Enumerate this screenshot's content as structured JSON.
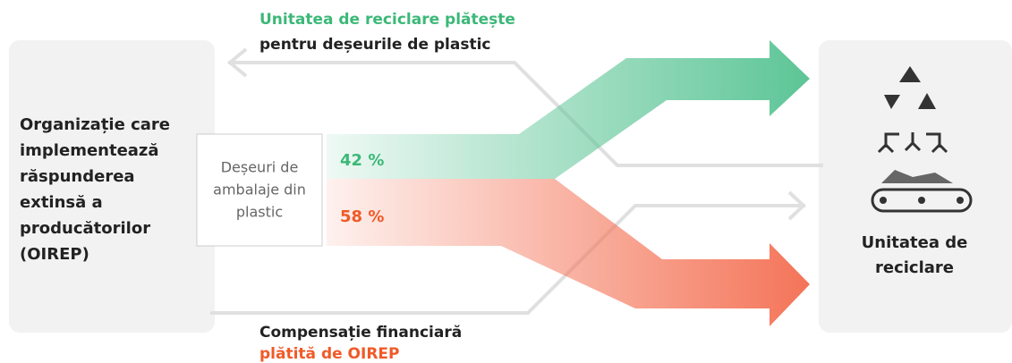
{
  "top_label": {
    "line1": "Unitatea de reciclare plătește",
    "line2": "pentru deșeurile de plastic"
  },
  "bottom_label": {
    "line1": "Compensație financiară",
    "line2": "plătită de OIREP"
  },
  "left_box": {
    "lines": [
      "Organizație care",
      "implementează",
      "răspunderea",
      "extinsă a",
      "producătorilor",
      "(OIREP)"
    ]
  },
  "center_box": {
    "lines": [
      "Deșeuri de",
      "ambalaje din",
      "plastic"
    ]
  },
  "flows": {
    "green": "42 %",
    "orange": "58 %"
  },
  "right_box": {
    "lines": [
      "Unitatea de",
      "reciclare"
    ]
  }
}
